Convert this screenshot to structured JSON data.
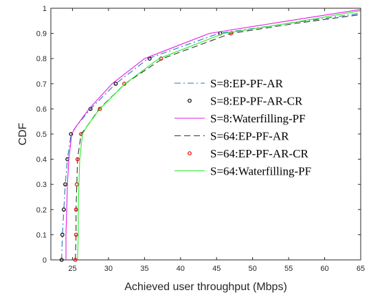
{
  "chart_data": {
    "type": "line",
    "xlabel": "Achieved user throughput (Mbps)",
    "ylabel": "CDF",
    "xlim": [
      22,
      65
    ],
    "ylim": [
      0,
      1
    ],
    "xticks": [
      "25",
      "30",
      "35",
      "40",
      "45",
      "50",
      "55",
      "60",
      "65"
    ],
    "yticks": [
      "0",
      "0.1",
      "0.2",
      "0.3",
      "0.4",
      "0.5",
      "0.6",
      "0.7",
      "0.8",
      "0.9",
      "1"
    ],
    "grid": false,
    "legend_position": "center-right",
    "series": [
      {
        "name": "S=8:EP-PF-AR",
        "color": "#1f77b4",
        "style": "dash-dot",
        "x": [
          23.5,
          23.6,
          23.8,
          24.0,
          24.3,
          24.8,
          25.5,
          27.5,
          31.0,
          35.5,
          45.3,
          55.0,
          65.0
        ],
        "y": [
          0,
          0.1,
          0.2,
          0.3,
          0.4,
          0.5,
          0.53,
          0.6,
          0.7,
          0.8,
          0.9,
          0.94,
          0.98
        ]
      },
      {
        "name": "S=8:EP-PF-AR-CR",
        "color": "#000000",
        "style": "markers",
        "x": [
          23.5,
          23.6,
          23.8,
          24.0,
          24.3,
          24.8,
          27.5,
          31.0,
          35.7,
          45.5
        ],
        "y": [
          0,
          0.1,
          0.2,
          0.3,
          0.4,
          0.5,
          0.6,
          0.7,
          0.8,
          0.9
        ]
      },
      {
        "name": "S=8:Waterfilling-PF",
        "color": "#e815e8",
        "style": "solid",
        "x": [
          24.1,
          24.1,
          24.2,
          24.3,
          24.5,
          24.9,
          25.5,
          27.3,
          30.5,
          35.0,
          44.0,
          55.0,
          65.0
        ],
        "y": [
          0,
          0.1,
          0.2,
          0.3,
          0.4,
          0.5,
          0.53,
          0.6,
          0.7,
          0.8,
          0.9,
          0.95,
          0.995
        ]
      },
      {
        "name": "S=64:EP-PF-AR",
        "color": "#333333",
        "style": "dashed",
        "x": [
          25.4,
          25.5,
          25.5,
          25.6,
          25.7,
          26.2,
          27.0,
          28.7,
          32.3,
          37.5,
          47.0,
          56.0,
          65.0
        ],
        "y": [
          0,
          0.1,
          0.2,
          0.3,
          0.4,
          0.5,
          0.53,
          0.6,
          0.7,
          0.8,
          0.9,
          0.94,
          0.975
        ]
      },
      {
        "name": "S=64:EP-PF-AR-CR",
        "color": "#e00000",
        "style": "markers",
        "x": [
          25.4,
          25.5,
          25.5,
          25.6,
          25.7,
          26.2,
          28.8,
          32.2,
          37.3,
          47.0
        ],
        "y": [
          0,
          0.1,
          0.2,
          0.3,
          0.4,
          0.5,
          0.6,
          0.7,
          0.8,
          0.9
        ]
      },
      {
        "name": "S=64:Waterfilling-PF",
        "color": "#22ee22",
        "style": "solid",
        "x": [
          25.7,
          25.8,
          25.8,
          25.9,
          26.0,
          26.4,
          27.0,
          28.8,
          32.3,
          37.0,
          46.0,
          56.0,
          65.0
        ],
        "y": [
          0,
          0.1,
          0.2,
          0.3,
          0.4,
          0.5,
          0.53,
          0.6,
          0.7,
          0.8,
          0.9,
          0.945,
          0.99
        ]
      }
    ]
  }
}
